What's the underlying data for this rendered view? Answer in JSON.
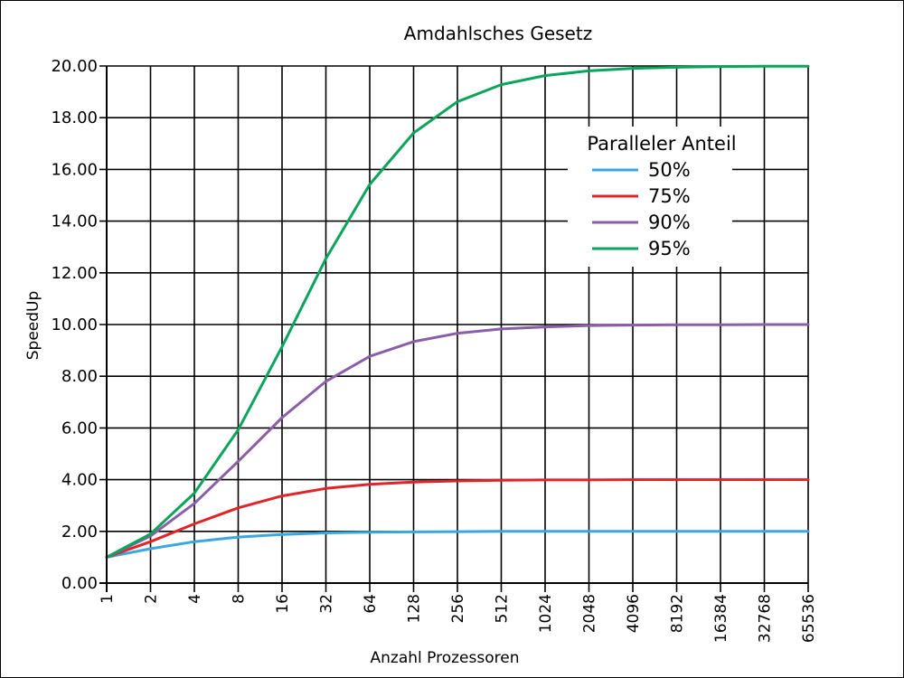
{
  "chart_data": {
    "type": "line",
    "title": "Amdahlsches Gesetz",
    "xlabel": "Anzahl Prozessoren",
    "ylabel": "SpeedUp",
    "x_scale": "log2",
    "x": [
      1,
      2,
      4,
      8,
      16,
      32,
      64,
      128,
      256,
      512,
      1024,
      2048,
      4096,
      8192,
      16384,
      32768,
      65536
    ],
    "x_tick_labels": [
      "1",
      "2",
      "4",
      "8",
      "16",
      "32",
      "64",
      "128",
      "256",
      "512",
      "1024",
      "2048",
      "4096",
      "8192",
      "16384",
      "32768",
      "65536"
    ],
    "ylim": [
      0,
      20
    ],
    "y_ticks": [
      0,
      2,
      4,
      6,
      8,
      10,
      12,
      14,
      16,
      18,
      20
    ],
    "y_tick_labels": [
      "0.00",
      "2.00",
      "4.00",
      "6.00",
      "8.00",
      "10.00",
      "12.00",
      "14.00",
      "16.00",
      "18.00",
      "20.00"
    ],
    "grid": true,
    "legend": {
      "title": "Paralleler Anteil",
      "placement": "top-right"
    },
    "series": [
      {
        "name": "50%",
        "color": "#3aa8df",
        "values": [
          1.0,
          1.33,
          1.6,
          1.78,
          1.88,
          1.94,
          1.97,
          1.98,
          1.99,
          2.0,
          2.0,
          2.0,
          2.0,
          2.0,
          2.0,
          2.0,
          2.0
        ]
      },
      {
        "name": "75%",
        "color": "#e0242a",
        "values": [
          1.0,
          1.6,
          2.29,
          2.91,
          3.37,
          3.66,
          3.82,
          3.91,
          3.95,
          3.98,
          3.99,
          3.99,
          4.0,
          4.0,
          4.0,
          4.0,
          4.0
        ]
      },
      {
        "name": "90%",
        "color": "#8a5ea8",
        "values": [
          1.0,
          1.82,
          3.08,
          4.71,
          6.4,
          7.8,
          8.77,
          9.34,
          9.66,
          9.83,
          9.91,
          9.96,
          9.98,
          9.99,
          9.99,
          10.0,
          10.0
        ]
      },
      {
        "name": "95%",
        "color": "#0aa55a",
        "values": [
          1.0,
          1.9,
          3.48,
          5.93,
          9.14,
          12.55,
          15.42,
          17.41,
          18.62,
          19.28,
          19.63,
          19.81,
          19.91,
          19.95,
          19.98,
          19.99,
          19.99
        ]
      }
    ]
  }
}
